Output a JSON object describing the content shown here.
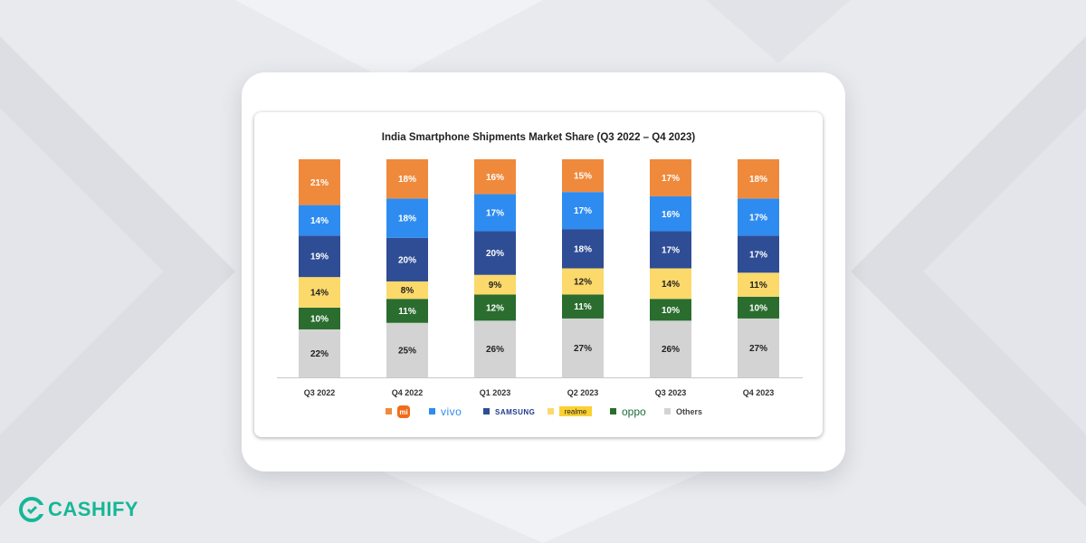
{
  "colors": {
    "background": "#e9eaee",
    "xiaomi": "#ef8a3c",
    "vivo": "#2e8cf0",
    "samsung": "#2f4d95",
    "realme": "#fbd96a",
    "oppo": "#2a6d2e",
    "others": "#d3d3d3",
    "brand": "#16b796"
  },
  "chart_data": {
    "type": "bar",
    "stacked": true,
    "title": "India Smartphone Shipments Market Share (Q3 2022 – Q4 2023)",
    "categories": [
      "Q3 2022",
      "Q4 2022",
      "Q1 2023",
      "Q2 2023",
      "Q3 2023",
      "Q4 2023"
    ],
    "series": [
      {
        "name": "Others",
        "color": "#d3d3d3",
        "values": [
          22,
          25,
          26,
          27,
          26,
          27
        ]
      },
      {
        "name": "OPPO",
        "color": "#2a6d2e",
        "values": [
          10,
          11,
          12,
          11,
          10,
          10
        ]
      },
      {
        "name": "realme",
        "color": "#fbd96a",
        "values": [
          14,
          8,
          9,
          12,
          14,
          11
        ]
      },
      {
        "name": "SAMSUNG",
        "color": "#2f4d95",
        "values": [
          19,
          20,
          20,
          18,
          17,
          17
        ]
      },
      {
        "name": "vivo",
        "color": "#2e8cf0",
        "values": [
          14,
          18,
          17,
          17,
          16,
          17
        ]
      },
      {
        "name": "Mi",
        "color": "#ef8a3c",
        "values": [
          21,
          18,
          16,
          15,
          17,
          18
        ]
      }
    ],
    "ylim": [
      0,
      100
    ],
    "legend_position": "bottom",
    "grid": false
  },
  "legend": [
    {
      "key": "mi",
      "label": "mi",
      "style": "mi-logo",
      "color": "#ef8a3c"
    },
    {
      "key": "vivo",
      "label": "vivo",
      "style": "vivo",
      "color": "#2e8cf0"
    },
    {
      "key": "samsung",
      "label": "SAMSUNG",
      "style": "samsung",
      "color": "#2f4d95"
    },
    {
      "key": "realme",
      "label": "realme",
      "style": "realme",
      "color": "#fbd96a"
    },
    {
      "key": "oppo",
      "label": "oppo",
      "style": "oppo",
      "color": "#2a6d2e"
    },
    {
      "key": "others",
      "label": "Others",
      "style": "plain",
      "color": "#d3d3d3"
    }
  ],
  "watermark": {
    "brand": "CASHIFY"
  }
}
